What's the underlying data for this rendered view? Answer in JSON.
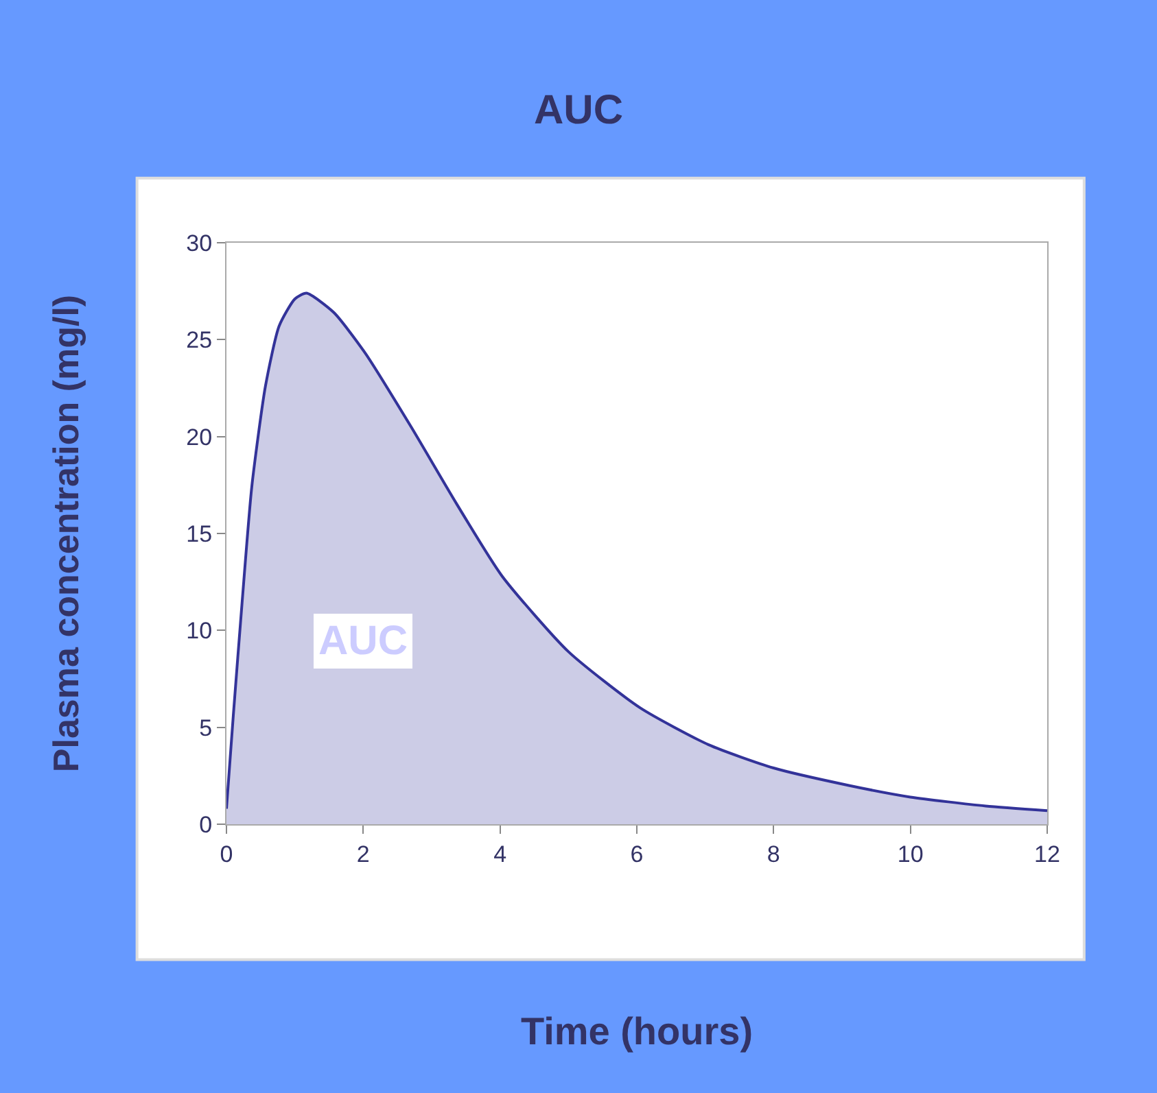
{
  "chart_data": {
    "type": "area",
    "title": "AUC",
    "xlabel": "Time (hours)",
    "ylabel": "Plasma concentration (mg/l)",
    "x": [
      0,
      0.1,
      0.23,
      0.37,
      0.57,
      0.77,
      1,
      1.17,
      1.57,
      2.03,
      2.7,
      3.37,
      4.03,
      5,
      6.05,
      7.05,
      8,
      9.1,
      10,
      11.1,
      12
    ],
    "series": [
      {
        "color": "#333399",
        "values": [
          0.8,
          5.6,
          11.5,
          17.4,
          22.6,
          25.7,
          27.1,
          27.4,
          26.4,
          24.3,
          20.5,
          16.5,
          12.8,
          8.9,
          6,
          4.1,
          2.9,
          2,
          1.4,
          0.94,
          0.7
        ]
      }
    ],
    "xlim": [
      0,
      12
    ],
    "xticks": [
      0,
      2,
      4,
      6,
      8,
      10,
      12
    ],
    "ylim": [
      0,
      30
    ],
    "yticks": [
      0,
      5,
      10,
      15,
      20,
      25,
      30
    ],
    "grid": false,
    "marker": "none",
    "line_style": "solid",
    "annotations": [
      "AUC"
    ]
  }
}
